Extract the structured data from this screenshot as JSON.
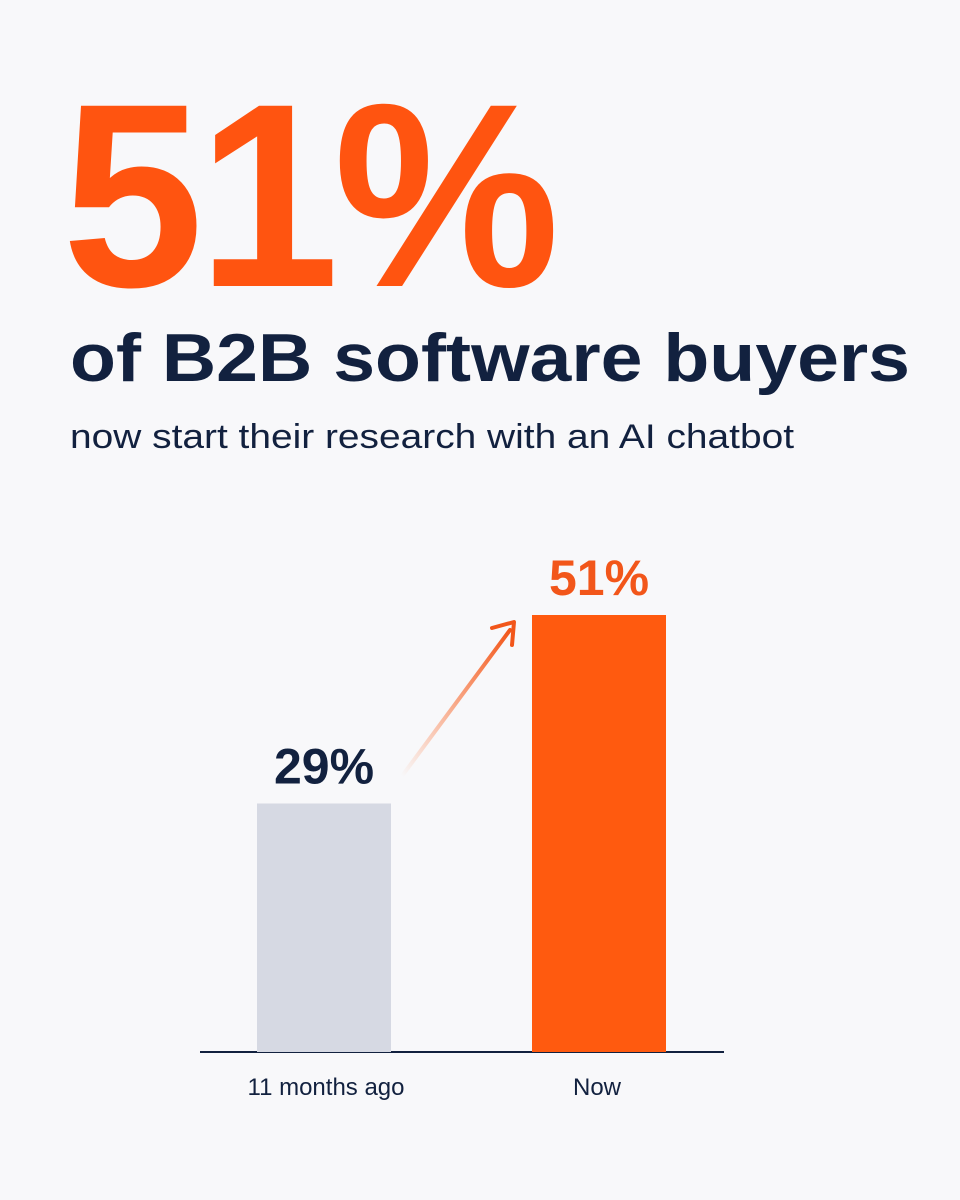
{
  "chart_data": {
    "type": "bar",
    "headline": "51%",
    "title": "of B2B software buyers",
    "subtitle": "now start their research with an AI chatbot",
    "categories": [
      "11 months ago",
      "Now"
    ],
    "values": [
      29,
      51
    ],
    "value_labels": [
      "29%",
      "51%"
    ],
    "colors": [
      "#d6d9e3",
      "#ff5a0f"
    ],
    "value_label_colors": [
      "#12213f",
      "#f2561a"
    ]
  }
}
